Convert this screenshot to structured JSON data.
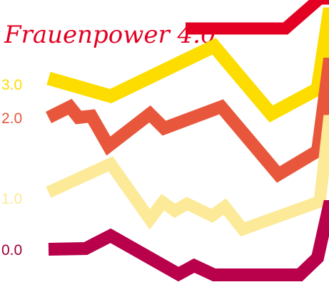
{
  "brand": {
    "name": "Frauenpower 4.0"
  },
  "levels": [
    {
      "label": "3.0",
      "color": "#fddd00"
    },
    {
      "label": "2.0",
      "color": "#e8573c"
    },
    {
      "label": "1.0",
      "color": "#fcea98"
    },
    {
      "label": "0.0",
      "color": "#b8004b"
    }
  ],
  "logo_color": "#e30022"
}
